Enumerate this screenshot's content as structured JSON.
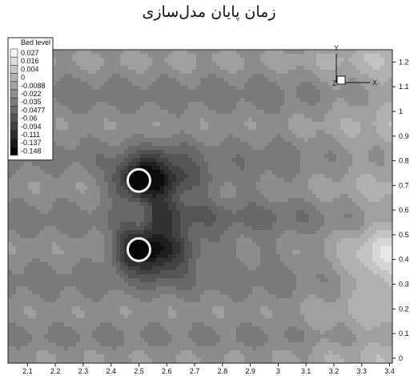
{
  "page": {
    "title": "زمان پایان مدل‌سازی"
  },
  "chart_data": {
    "type": "heatmap",
    "title": "زمان پایان مدل‌سازی",
    "xlabel": "",
    "ylabel": "",
    "xlim": [
      2.03,
      3.41
    ],
    "ylim": [
      -0.02,
      1.25
    ],
    "x_ticks": [
      "2.1",
      "2.2",
      "2.3",
      "2.4",
      "2.5",
      "2.6",
      "2.7",
      "2.8",
      "2.9",
      "3",
      "3.1",
      "3.2",
      "3.3",
      "3.4"
    ],
    "y_ticks": [
      "0",
      "0.1",
      "0.2",
      "0.3",
      "0.4",
      "0.5",
      "0.6",
      "0.7",
      "0.8",
      "0.9",
      "1",
      "1.1",
      "1.2"
    ],
    "legend": {
      "title": "Bed level",
      "placement": "top-left",
      "levels": [
        "0.027",
        "0.016",
        "0.004",
        "0",
        "-0.0088",
        "-0.022",
        "-0.035",
        "-0.0477",
        "-0.06",
        "-0.094",
        "-0.111",
        "-0.137",
        "-0.148"
      ],
      "colors": [
        "#f4f4f4",
        "#dedede",
        "#c8c8c8",
        "#b4b4b4",
        "#a2a2a2",
        "#8f8f8f",
        "#7c7c7c",
        "#696969",
        "#555555",
        "#414141",
        "#2d2d2d",
        "#191919",
        "#060606"
      ]
    },
    "piers": [
      {
        "x": 2.5,
        "y": 0.72
      },
      {
        "x": 2.5,
        "y": 0.44
      }
    ],
    "axes_triad": {
      "x_label": "X",
      "y_label": "Y",
      "z_label": "Z"
    }
  }
}
